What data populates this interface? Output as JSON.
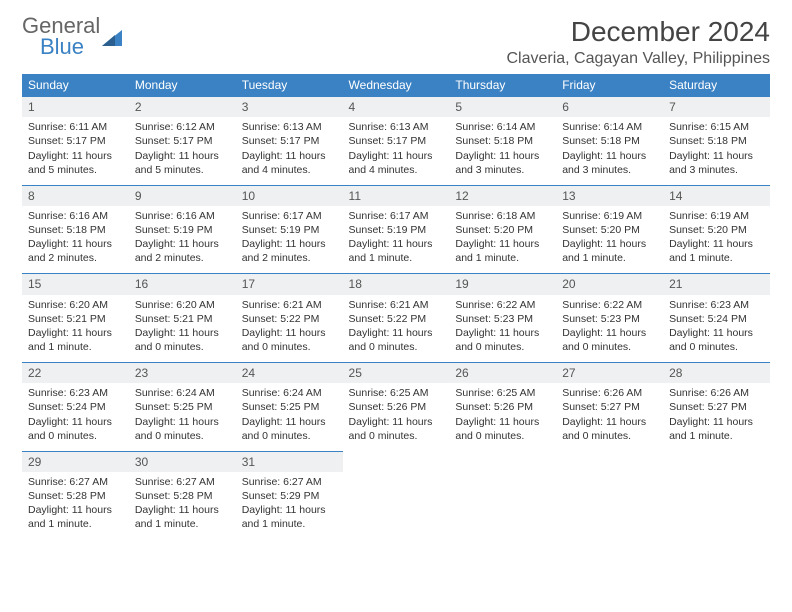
{
  "logo": {
    "line1": "General",
    "line2": "Blue"
  },
  "title": "December 2024",
  "location": "Claveria, Cagayan Valley, Philippines",
  "colors": {
    "header_bg": "#3b82c4",
    "header_text": "#ffffff",
    "daynum_bg": "#eef0f1",
    "border": "#3b82c4",
    "text": "#333333",
    "logo_top": "#666666",
    "logo_bottom": "#3b82c4"
  },
  "weekdays": [
    "Sunday",
    "Monday",
    "Tuesday",
    "Wednesday",
    "Thursday",
    "Friday",
    "Saturday"
  ],
  "weeks": [
    [
      {
        "num": "1",
        "sunrise": "Sunrise: 6:11 AM",
        "sunset": "Sunset: 5:17 PM",
        "daylight": "Daylight: 11 hours and 5 minutes."
      },
      {
        "num": "2",
        "sunrise": "Sunrise: 6:12 AM",
        "sunset": "Sunset: 5:17 PM",
        "daylight": "Daylight: 11 hours and 5 minutes."
      },
      {
        "num": "3",
        "sunrise": "Sunrise: 6:13 AM",
        "sunset": "Sunset: 5:17 PM",
        "daylight": "Daylight: 11 hours and 4 minutes."
      },
      {
        "num": "4",
        "sunrise": "Sunrise: 6:13 AM",
        "sunset": "Sunset: 5:17 PM",
        "daylight": "Daylight: 11 hours and 4 minutes."
      },
      {
        "num": "5",
        "sunrise": "Sunrise: 6:14 AM",
        "sunset": "Sunset: 5:18 PM",
        "daylight": "Daylight: 11 hours and 3 minutes."
      },
      {
        "num": "6",
        "sunrise": "Sunrise: 6:14 AM",
        "sunset": "Sunset: 5:18 PM",
        "daylight": "Daylight: 11 hours and 3 minutes."
      },
      {
        "num": "7",
        "sunrise": "Sunrise: 6:15 AM",
        "sunset": "Sunset: 5:18 PM",
        "daylight": "Daylight: 11 hours and 3 minutes."
      }
    ],
    [
      {
        "num": "8",
        "sunrise": "Sunrise: 6:16 AM",
        "sunset": "Sunset: 5:18 PM",
        "daylight": "Daylight: 11 hours and 2 minutes."
      },
      {
        "num": "9",
        "sunrise": "Sunrise: 6:16 AM",
        "sunset": "Sunset: 5:19 PM",
        "daylight": "Daylight: 11 hours and 2 minutes."
      },
      {
        "num": "10",
        "sunrise": "Sunrise: 6:17 AM",
        "sunset": "Sunset: 5:19 PM",
        "daylight": "Daylight: 11 hours and 2 minutes."
      },
      {
        "num": "11",
        "sunrise": "Sunrise: 6:17 AM",
        "sunset": "Sunset: 5:19 PM",
        "daylight": "Daylight: 11 hours and 1 minute."
      },
      {
        "num": "12",
        "sunrise": "Sunrise: 6:18 AM",
        "sunset": "Sunset: 5:20 PM",
        "daylight": "Daylight: 11 hours and 1 minute."
      },
      {
        "num": "13",
        "sunrise": "Sunrise: 6:19 AM",
        "sunset": "Sunset: 5:20 PM",
        "daylight": "Daylight: 11 hours and 1 minute."
      },
      {
        "num": "14",
        "sunrise": "Sunrise: 6:19 AM",
        "sunset": "Sunset: 5:20 PM",
        "daylight": "Daylight: 11 hours and 1 minute."
      }
    ],
    [
      {
        "num": "15",
        "sunrise": "Sunrise: 6:20 AM",
        "sunset": "Sunset: 5:21 PM",
        "daylight": "Daylight: 11 hours and 1 minute."
      },
      {
        "num": "16",
        "sunrise": "Sunrise: 6:20 AM",
        "sunset": "Sunset: 5:21 PM",
        "daylight": "Daylight: 11 hours and 0 minutes."
      },
      {
        "num": "17",
        "sunrise": "Sunrise: 6:21 AM",
        "sunset": "Sunset: 5:22 PM",
        "daylight": "Daylight: 11 hours and 0 minutes."
      },
      {
        "num": "18",
        "sunrise": "Sunrise: 6:21 AM",
        "sunset": "Sunset: 5:22 PM",
        "daylight": "Daylight: 11 hours and 0 minutes."
      },
      {
        "num": "19",
        "sunrise": "Sunrise: 6:22 AM",
        "sunset": "Sunset: 5:23 PM",
        "daylight": "Daylight: 11 hours and 0 minutes."
      },
      {
        "num": "20",
        "sunrise": "Sunrise: 6:22 AM",
        "sunset": "Sunset: 5:23 PM",
        "daylight": "Daylight: 11 hours and 0 minutes."
      },
      {
        "num": "21",
        "sunrise": "Sunrise: 6:23 AM",
        "sunset": "Sunset: 5:24 PM",
        "daylight": "Daylight: 11 hours and 0 minutes."
      }
    ],
    [
      {
        "num": "22",
        "sunrise": "Sunrise: 6:23 AM",
        "sunset": "Sunset: 5:24 PM",
        "daylight": "Daylight: 11 hours and 0 minutes."
      },
      {
        "num": "23",
        "sunrise": "Sunrise: 6:24 AM",
        "sunset": "Sunset: 5:25 PM",
        "daylight": "Daylight: 11 hours and 0 minutes."
      },
      {
        "num": "24",
        "sunrise": "Sunrise: 6:24 AM",
        "sunset": "Sunset: 5:25 PM",
        "daylight": "Daylight: 11 hours and 0 minutes."
      },
      {
        "num": "25",
        "sunrise": "Sunrise: 6:25 AM",
        "sunset": "Sunset: 5:26 PM",
        "daylight": "Daylight: 11 hours and 0 minutes."
      },
      {
        "num": "26",
        "sunrise": "Sunrise: 6:25 AM",
        "sunset": "Sunset: 5:26 PM",
        "daylight": "Daylight: 11 hours and 0 minutes."
      },
      {
        "num": "27",
        "sunrise": "Sunrise: 6:26 AM",
        "sunset": "Sunset: 5:27 PM",
        "daylight": "Daylight: 11 hours and 0 minutes."
      },
      {
        "num": "28",
        "sunrise": "Sunrise: 6:26 AM",
        "sunset": "Sunset: 5:27 PM",
        "daylight": "Daylight: 11 hours and 1 minute."
      }
    ],
    [
      {
        "num": "29",
        "sunrise": "Sunrise: 6:27 AM",
        "sunset": "Sunset: 5:28 PM",
        "daylight": "Daylight: 11 hours and 1 minute."
      },
      {
        "num": "30",
        "sunrise": "Sunrise: 6:27 AM",
        "sunset": "Sunset: 5:28 PM",
        "daylight": "Daylight: 11 hours and 1 minute."
      },
      {
        "num": "31",
        "sunrise": "Sunrise: 6:27 AM",
        "sunset": "Sunset: 5:29 PM",
        "daylight": "Daylight: 11 hours and 1 minute."
      },
      null,
      null,
      null,
      null
    ]
  ]
}
